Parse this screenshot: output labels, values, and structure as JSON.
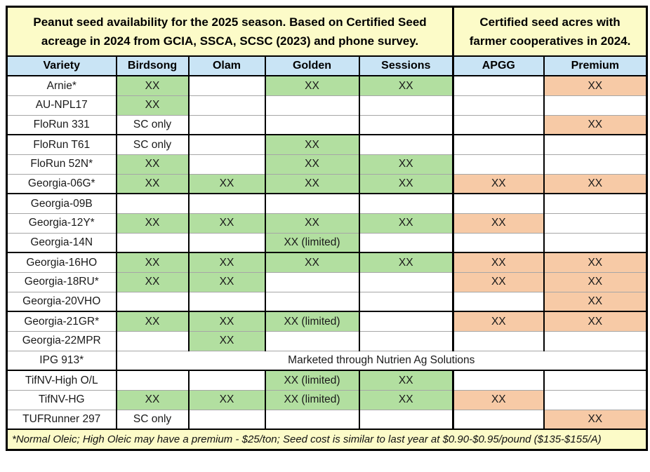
{
  "title_left": "Peanut seed availability for the 2025 season. Based on Certified Seed acreage in 2024 from GCIA, SSCA, SCSC (2023) and phone survey.",
  "title_right": "Certified seed acres with farmer cooperatives in 2024.",
  "columns": [
    "Variety",
    "Birdsong",
    "Olam",
    "Golden",
    "Sessions",
    "APGG",
    "Premium"
  ],
  "cell_colors": {
    "green": "#B2DFA0",
    "orange": "#F7CAA6",
    "white": "#FFFFFF",
    "header_yellow": "#FCFBC8",
    "header_blue": "#C9E4F5",
    "thin_grid": "#A6A6A6",
    "border": "#000000"
  },
  "rows": [
    {
      "variety": "Arnie*",
      "cells": [
        {
          "t": "XX",
          "bg": "green"
        },
        {
          "t": "",
          "bg": "white"
        },
        {
          "t": "XX",
          "bg": "green"
        },
        {
          "t": "XX",
          "bg": "green"
        },
        {
          "t": "",
          "bg": "white"
        },
        {
          "t": "XX",
          "bg": "orange"
        }
      ]
    },
    {
      "variety": "AU-NPL17",
      "cells": [
        {
          "t": "XX",
          "bg": "green"
        },
        {
          "t": "",
          "bg": "white"
        },
        {
          "t": "",
          "bg": "white"
        },
        {
          "t": "",
          "bg": "white"
        },
        {
          "t": "",
          "bg": "white"
        },
        {
          "t": "",
          "bg": "white"
        }
      ]
    },
    {
      "variety": "FloRun 331",
      "cells": [
        {
          "t": "SC only",
          "bg": "white"
        },
        {
          "t": "",
          "bg": "white"
        },
        {
          "t": "",
          "bg": "white"
        },
        {
          "t": "",
          "bg": "white"
        },
        {
          "t": "",
          "bg": "white"
        },
        {
          "t": "XX",
          "bg": "orange"
        }
      ]
    },
    {
      "variety": "FloRun T61",
      "cells": [
        {
          "t": "SC only",
          "bg": "white"
        },
        {
          "t": "",
          "bg": "white"
        },
        {
          "t": "XX",
          "bg": "green"
        },
        {
          "t": "",
          "bg": "white"
        },
        {
          "t": "",
          "bg": "white"
        },
        {
          "t": "",
          "bg": "white"
        }
      ]
    },
    {
      "variety": "FloRun 52N*",
      "cells": [
        {
          "t": "XX",
          "bg": "green"
        },
        {
          "t": "",
          "bg": "white"
        },
        {
          "t": "XX",
          "bg": "green"
        },
        {
          "t": "XX",
          "bg": "green"
        },
        {
          "t": "",
          "bg": "white"
        },
        {
          "t": "",
          "bg": "white"
        }
      ]
    },
    {
      "variety": "Georgia-06G*",
      "cells": [
        {
          "t": "XX",
          "bg": "green"
        },
        {
          "t": "XX",
          "bg": "green"
        },
        {
          "t": "XX",
          "bg": "green"
        },
        {
          "t": "XX",
          "bg": "green"
        },
        {
          "t": "XX",
          "bg": "orange"
        },
        {
          "t": "XX",
          "bg": "orange"
        }
      ]
    },
    {
      "variety": "Georgia-09B",
      "cells": [
        {
          "t": "",
          "bg": "white"
        },
        {
          "t": "",
          "bg": "white"
        },
        {
          "t": "",
          "bg": "white"
        },
        {
          "t": "",
          "bg": "white"
        },
        {
          "t": "",
          "bg": "white"
        },
        {
          "t": "",
          "bg": "white"
        }
      ]
    },
    {
      "variety": "Georgia-12Y*",
      "cells": [
        {
          "t": "XX",
          "bg": "green"
        },
        {
          "t": "XX",
          "bg": "green"
        },
        {
          "t": "XX",
          "bg": "green"
        },
        {
          "t": "XX",
          "bg": "green"
        },
        {
          "t": "XX",
          "bg": "orange"
        },
        {
          "t": "",
          "bg": "white"
        }
      ]
    },
    {
      "variety": "Georgia-14N",
      "cells": [
        {
          "t": "",
          "bg": "white"
        },
        {
          "t": "",
          "bg": "white"
        },
        {
          "t": "XX (limited)",
          "bg": "green"
        },
        {
          "t": "",
          "bg": "white"
        },
        {
          "t": "",
          "bg": "white"
        },
        {
          "t": "",
          "bg": "white"
        }
      ]
    },
    {
      "variety": "Georgia-16HO",
      "cells": [
        {
          "t": "XX",
          "bg": "green"
        },
        {
          "t": "XX",
          "bg": "green"
        },
        {
          "t": "XX",
          "bg": "green"
        },
        {
          "t": "XX",
          "bg": "green"
        },
        {
          "t": "XX",
          "bg": "orange"
        },
        {
          "t": "XX",
          "bg": "orange"
        }
      ]
    },
    {
      "variety": "Georgia-18RU*",
      "cells": [
        {
          "t": "XX",
          "bg": "green"
        },
        {
          "t": "XX",
          "bg": "green"
        },
        {
          "t": "",
          "bg": "white"
        },
        {
          "t": "",
          "bg": "white"
        },
        {
          "t": "XX",
          "bg": "orange"
        },
        {
          "t": "XX",
          "bg": "orange"
        }
      ]
    },
    {
      "variety": "Georgia-20VHO",
      "cells": [
        {
          "t": "",
          "bg": "white"
        },
        {
          "t": "",
          "bg": "white"
        },
        {
          "t": "",
          "bg": "white"
        },
        {
          "t": "",
          "bg": "white"
        },
        {
          "t": "",
          "bg": "white"
        },
        {
          "t": "XX",
          "bg": "orange"
        }
      ]
    },
    {
      "variety": "Georgia-21GR*",
      "cells": [
        {
          "t": "XX",
          "bg": "green"
        },
        {
          "t": "XX",
          "bg": "green"
        },
        {
          "t": "XX (limited)",
          "bg": "green"
        },
        {
          "t": "",
          "bg": "white"
        },
        {
          "t": "XX",
          "bg": "orange"
        },
        {
          "t": "XX",
          "bg": "orange"
        }
      ]
    },
    {
      "variety": "Georgia-22MPR",
      "cells": [
        {
          "t": "",
          "bg": "white"
        },
        {
          "t": "XX",
          "bg": "green"
        },
        {
          "t": "",
          "bg": "white"
        },
        {
          "t": "",
          "bg": "white"
        },
        {
          "t": "",
          "bg": "white"
        },
        {
          "t": "",
          "bg": "white"
        }
      ]
    },
    {
      "variety": "IPG 913*",
      "merged": "Marketed through Nutrien Ag Solutions"
    },
    {
      "variety": "TifNV-High O/L",
      "cells": [
        {
          "t": "",
          "bg": "white"
        },
        {
          "t": "",
          "bg": "white"
        },
        {
          "t": "XX (limited)",
          "bg": "green"
        },
        {
          "t": "XX",
          "bg": "green"
        },
        {
          "t": "",
          "bg": "white"
        },
        {
          "t": "",
          "bg": "white"
        }
      ]
    },
    {
      "variety": "TifNV-HG",
      "cells": [
        {
          "t": "XX",
          "bg": "green"
        },
        {
          "t": "XX",
          "bg": "green"
        },
        {
          "t": "XX (limited)",
          "bg": "green"
        },
        {
          "t": "XX",
          "bg": "green"
        },
        {
          "t": "XX",
          "bg": "orange"
        },
        {
          "t": "",
          "bg": "white"
        }
      ]
    },
    {
      "variety": "TUFRunner 297",
      "cells": [
        {
          "t": "SC only",
          "bg": "white"
        },
        {
          "t": "",
          "bg": "white"
        },
        {
          "t": "",
          "bg": "white"
        },
        {
          "t": "",
          "bg": "white"
        },
        {
          "t": "",
          "bg": "white"
        },
        {
          "t": "XX",
          "bg": "orange"
        }
      ]
    }
  ],
  "footer_note": "*Normal Oleic; High Oleic may have a premium - $25/ton; Seed cost is similar to last year at $0.90-$0.95/pound ($135-$155/A)"
}
